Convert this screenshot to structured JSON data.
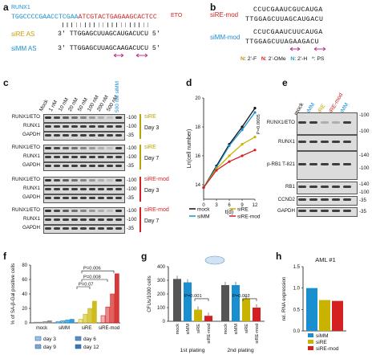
{
  "panels": {
    "a": {
      "label": "a",
      "runx1": "RUNX1",
      "eto": "ETO",
      "seq_top_a": "TGGCCCCGAACCTCGAA",
      "seq_top_b": "ATCGTACTGAGAAGCACTCC",
      "sire_label": "siRE AS",
      "sire_seq": "3' TTGGAGCUUAGCAUGACUCU 5'",
      "simm_label": "siMM AS",
      "simm_seq": "3' TTGGAGCUUAGCAAGACUCU 5'"
    },
    "b": {
      "label": "b",
      "sire_mod_label": "siRE-mod",
      "sire_mod_top": "CCUCGAAUCGUCAUGA",
      "sire_mod_bot": "TTGGAGCUUAGCAUGACU",
      "simm_mod_label": "siMM-mod",
      "simm_mod_top": "CCUCGAAUCUUCAUGA",
      "simm_mod_bot": "TTGGAGCUUAGAAGACU",
      "legend": [
        {
          "key": "N",
          "text": ": 2'-F",
          "color": "#d08a10"
        },
        {
          "key": "N",
          "text": ": 2'-OMe",
          "color": "#d42020"
        },
        {
          "key": "N",
          "text": ": 2'-H",
          "color": "#1aa0c8"
        },
        {
          "key": "*",
          "text": ": PS",
          "color": "#2a9d2a"
        }
      ]
    },
    "c": {
      "label": "c",
      "lanes": [
        "Mock",
        "1 nM",
        "10 nM",
        "20 nM",
        "50 nM",
        "100 nM",
        "200 nM",
        "500 nM",
        "500 nM siMM"
      ],
      "rows": [
        "RUNX1/ETO",
        "RUNX1",
        "GAPDH"
      ],
      "mw": [
        "100",
        "100",
        "35"
      ],
      "groups": [
        {
          "name": "siRE",
          "day": "Day 3",
          "color": "#b8a400"
        },
        {
          "name": "siRE",
          "day": "Day 7",
          "color": "#b8a400"
        },
        {
          "name": "siRE-mod",
          "day": "Day 3",
          "color": "#d42020"
        },
        {
          "name": "siRE-mod",
          "day": "Day 7",
          "color": "#d42020"
        }
      ],
      "colors": {
        "sire": "#b8a400",
        "siremod": "#d42020",
        "simm": "#1a8fd0"
      }
    },
    "d": {
      "label": "d",
      "pval": "P=0.0005"
    },
    "e": {
      "label": "e",
      "lanes": [
        "mock",
        "siMM",
        "siRE",
        "siRE-mod",
        "siMM"
      ],
      "lane_colors": [
        "#111111",
        "#1a8fd0",
        "#b8a400",
        "#d42020",
        "#1a8fd0"
      ],
      "rows": [
        "RUNX1/ETO",
        "RUNX1",
        "p-RB1 T-821",
        "RB1",
        "CCND2",
        "GAPDH"
      ],
      "mw": [
        "100",
        "100",
        "140",
        "100",
        "140",
        "100",
        "35",
        "35"
      ]
    },
    "f": {
      "label": "f",
      "pvals": [
        "P=0.006",
        "P=0.008",
        "P=0.07"
      ],
      "legend": [
        "day 3",
        "day 9",
        "day 6",
        "day 12"
      ]
    },
    "g": {
      "label": "g",
      "pvals": [
        "P=0.001",
        "P=0.002"
      ],
      "platings": [
        "1st plating",
        "2nd plating"
      ]
    },
    "h": {
      "label": "h",
      "title": "AML #1",
      "legend": [
        "siMM",
        "siRE",
        "siRE-mod"
      ]
    }
  },
  "chart_data": [
    {
      "panel": "d",
      "type": "line",
      "xlabel": "t(d)",
      "ylabel": "Ln(cell number)",
      "x": [
        0,
        3,
        6,
        9,
        12
      ],
      "xlim": [
        0,
        12
      ],
      "ylim": [
        13,
        20
      ],
      "yticks": [
        14,
        16,
        18,
        20
      ],
      "series": [
        {
          "name": "mock",
          "color": "#111111",
          "values": [
            13.8,
            15.3,
            16.8,
            18.0,
            19.3
          ]
        },
        {
          "name": "siMM",
          "color": "#1a8fd0",
          "values": [
            13.8,
            15.2,
            16.7,
            17.8,
            19.0
          ]
        },
        {
          "name": "siRE",
          "color": "#c8b400",
          "values": [
            13.8,
            15.1,
            16.0,
            16.8,
            17.3
          ]
        },
        {
          "name": "siRE-mod",
          "color": "#d42020",
          "values": [
            13.8,
            15.0,
            15.6,
            16.0,
            16.4
          ]
        }
      ]
    },
    {
      "panel": "f",
      "type": "bar",
      "ylabel": "% of SA-β-Gal positive cells",
      "categories": [
        "mock",
        "siMM",
        "siRE",
        "siRE-mod"
      ],
      "ylim": [
        0,
        80
      ],
      "yticks": [
        0,
        20,
        40,
        60,
        80
      ],
      "series": [
        {
          "name": "day 3",
          "values": [
            1,
            2,
            5,
            10
          ]
        },
        {
          "name": "day 6",
          "values": [
            1,
            3,
            12,
            22
          ]
        },
        {
          "name": "day 9",
          "values": [
            2,
            4,
            20,
            40
          ]
        },
        {
          "name": "day 12",
          "values": [
            3,
            5,
            30,
            68
          ]
        }
      ],
      "colors": [
        "#888888",
        "#1a8fd0",
        "#c8b400",
        "#d42020"
      ]
    },
    {
      "panel": "g",
      "type": "bar",
      "ylabel": "CFUs/1000 cells",
      "categories": [
        "mock",
        "siMM",
        "siRE",
        "siRE-mod"
      ],
      "groups": [
        "1st plating",
        "2nd plating"
      ],
      "ylim": [
        0,
        400
      ],
      "yticks": [
        0,
        100,
        200,
        300,
        400
      ],
      "series": [
        {
          "name": "1st plating",
          "values": [
            310,
            285,
            85,
            40
          ]
        },
        {
          "name": "2nd plating",
          "values": [
            265,
            265,
            165,
            100
          ]
        }
      ],
      "colors": [
        "#555555",
        "#1a8fd0",
        "#c8b400",
        "#d42020"
      ]
    },
    {
      "panel": "h",
      "type": "bar",
      "title": "AML #1",
      "ylabel": "rel. RNA expression",
      "categories": [
        "siMM",
        "siRE",
        "siRE-mod"
      ],
      "values": [
        1.0,
        0.72,
        0.7
      ],
      "ylim": [
        0,
        1.5
      ],
      "yticks": [
        0.0,
        0.5,
        1.0,
        1.5
      ],
      "colors": [
        "#1a8fd0",
        "#c8b400",
        "#d42020"
      ]
    }
  ]
}
